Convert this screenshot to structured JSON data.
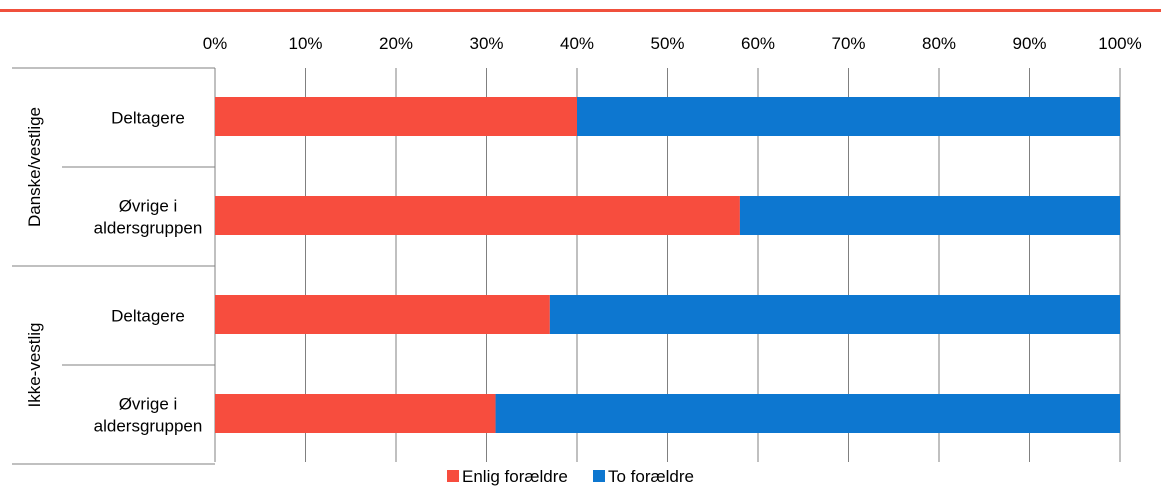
{
  "colors": {
    "accent_rule": "#f0503c",
    "enlig": "#f74d3e",
    "to": "#0d77d0",
    "grid": "#808080"
  },
  "chart_data": {
    "type": "bar",
    "orientation": "horizontal",
    "stacked": true,
    "xlim": [
      0,
      100
    ],
    "x_ticks": [
      "0%",
      "10%",
      "20%",
      "30%",
      "40%",
      "50%",
      "60%",
      "70%",
      "80%",
      "90%",
      "100%"
    ],
    "groups": [
      {
        "label": "Danske/vestlige",
        "categories": [
          "Deltagere",
          "Øvrige i aldersgruppen"
        ]
      },
      {
        "label": "Ikke-vestlig",
        "categories": [
          "Deltagere",
          "Øvrige i aldersgruppen"
        ]
      }
    ],
    "series": [
      {
        "name": "Enlig forældre",
        "color": "#f74d3e",
        "values": [
          40,
          58,
          37,
          31
        ]
      },
      {
        "name": "To forældre",
        "color": "#0d77d0",
        "values": [
          60,
          42,
          63,
          69
        ]
      }
    ],
    "grid": true,
    "legend_position": "bottom"
  }
}
